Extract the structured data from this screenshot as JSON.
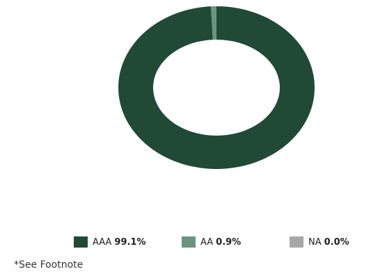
{
  "chart_data": {
    "type": "pie",
    "categories": [
      "AAA",
      "AA",
      "NA"
    ],
    "values": [
      99.1,
      0.9,
      0.0
    ],
    "value_labels": [
      "99.1%",
      "0.9%",
      "0.0%"
    ],
    "colors": [
      "#214a36",
      "#6a9480",
      "#a6a6a6"
    ],
    "donut": true,
    "legend": "bottom"
  },
  "legend": [
    {
      "label": "AAA",
      "value": "99.1%",
      "color": "#214a36"
    },
    {
      "label": "AA",
      "value": "0.9%",
      "color": "#6a9480"
    },
    {
      "label": "NA",
      "value": "0.0%",
      "color": "#a6a6a6"
    }
  ],
  "footnote": "*See Footnote"
}
